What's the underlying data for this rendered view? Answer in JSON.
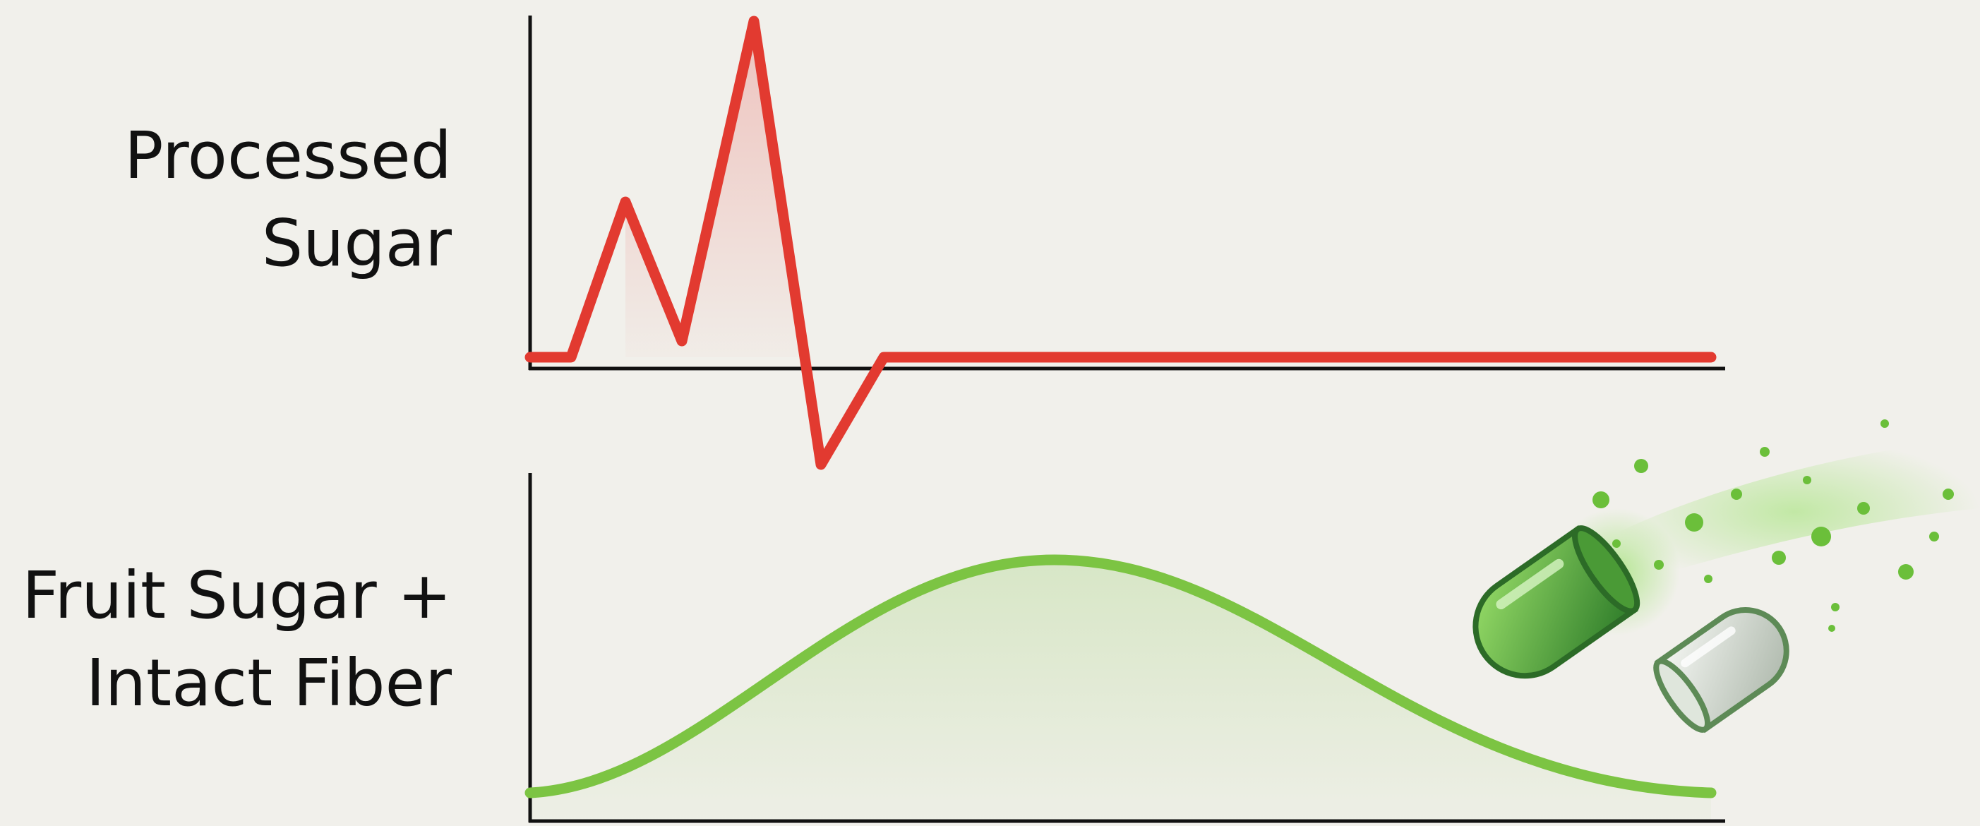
{
  "labels": {
    "processed": [
      "Processed",
      "Sugar"
    ],
    "fruit": [
      "Fruit Sugar +",
      "Intact Fiber"
    ]
  }
}
